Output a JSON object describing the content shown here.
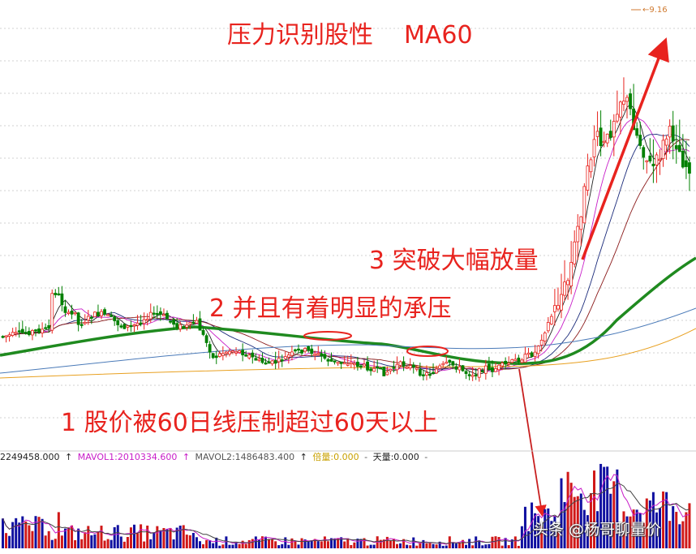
{
  "annotations": {
    "title": "压力识别股性",
    "title_ma": "MA60",
    "note3": "3 突破大幅放量",
    "note2": "2 并且有着明显的承压",
    "note1": "1 股价被60日线压制超过60天以上"
  },
  "peak_label": "9.16",
  "volume_legend": {
    "vol": "2249458.000",
    "mavol1": "MAVOL1:2010334.600",
    "mavol2": "MAVOL2:1486483.400",
    "beiliang": "倍量:0.000",
    "tianliang": "天量:0.000",
    "dash": "-"
  },
  "watermark": "头条 @杨哥聊量价",
  "colors": {
    "annotation": "#e8231e",
    "up_candle": "#e8231e",
    "down_candle": "#008000",
    "ma60": "#1f8a1f",
    "vol_up": "#d01818",
    "vol_down": "#1010a0",
    "mavol1": "#c81ec8",
    "mavol2": "#444444"
  },
  "chart_data": {
    "type": "candlestick",
    "title": "压力识别股性 MA60",
    "peak": 9.16,
    "series": [
      {
        "name": "MA60",
        "color": "#1f8a1f"
      },
      {
        "name": "MAVOL1",
        "color": "#c81ec8"
      },
      {
        "name": "MAVOL2",
        "color": "#444444"
      }
    ],
    "volume": {
      "vol": 2249458.0,
      "mavol1": 2010334.6,
      "mavol2": 1486483.4,
      "beiliang": 0.0,
      "tianliang": 0.0
    },
    "phases": [
      "1 股价被60日线压制超过60天以上",
      "2 并且有着明显的承压",
      "3 突破大幅放量"
    ]
  }
}
